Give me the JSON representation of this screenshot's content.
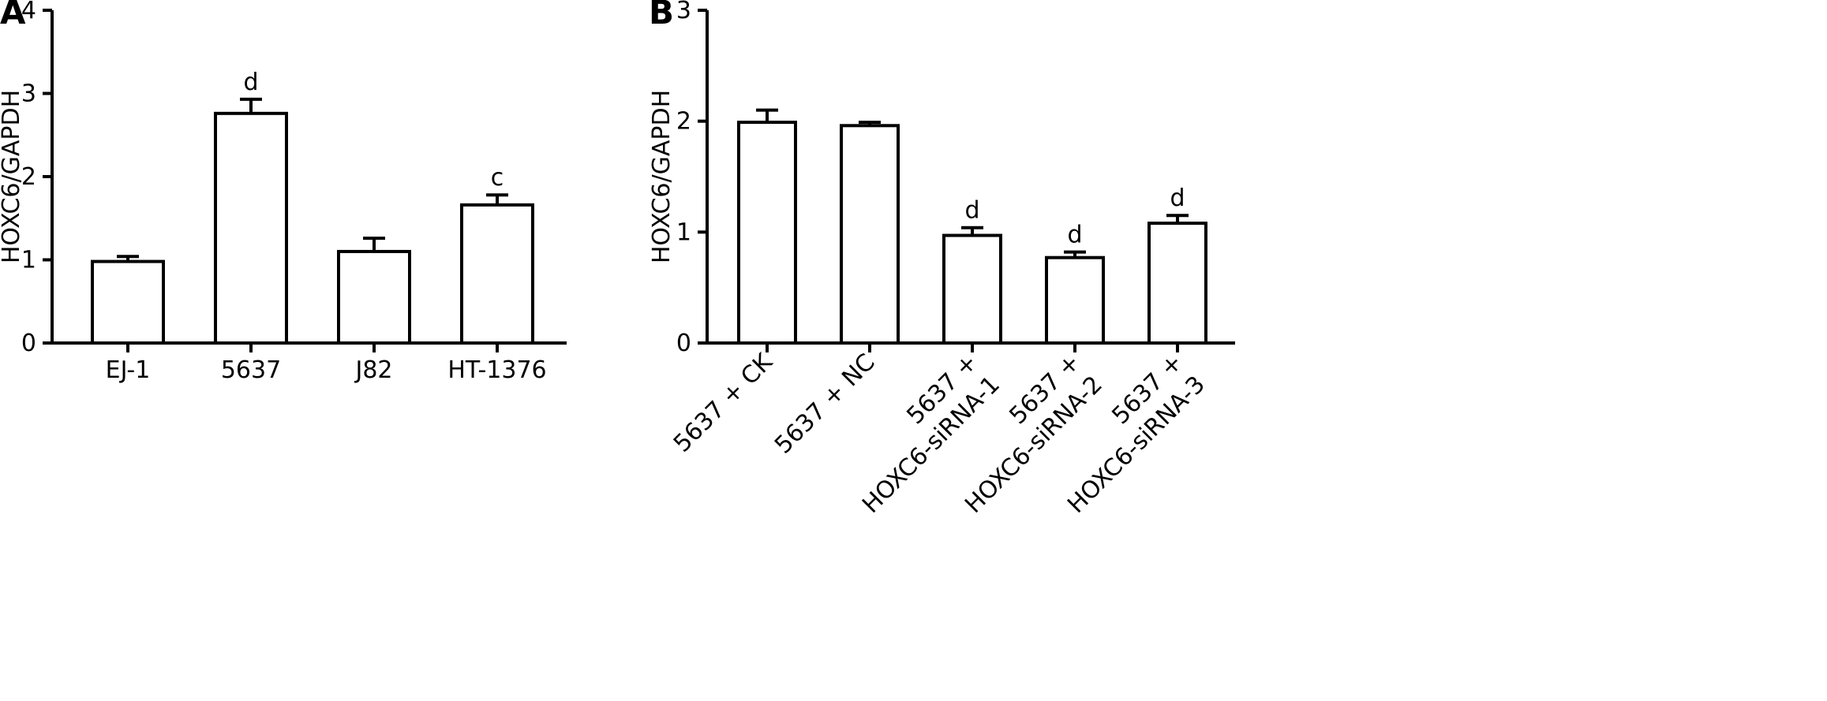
{
  "chart_data": [
    {
      "panel": "A",
      "type": "bar",
      "categories": [
        "EJ-1",
        "5637",
        "J82",
        "HT-1376"
      ],
      "values": [
        0.98,
        2.76,
        1.1,
        1.66
      ],
      "errors": [
        0.06,
        0.17,
        0.16,
        0.12
      ],
      "significance": [
        "",
        "d",
        "",
        "c"
      ],
      "ylabel": "HOXC6/GAPDH",
      "ylim": [
        0,
        4
      ],
      "yticks": [
        0,
        1,
        2,
        3,
        4
      ],
      "grid": false,
      "legend": "none",
      "bar_fill": "#ffffff",
      "bar_stroke": "#000000"
    },
    {
      "panel": "B",
      "type": "bar",
      "categories": [
        [
          "5637 + CK"
        ],
        [
          "5637 + NC"
        ],
        [
          "5637 +",
          "HOXC6-siRNA-1"
        ],
        [
          "5637 +",
          "HOXC6-siRNA-2"
        ],
        [
          "5637 +",
          "HOXC6-siRNA-3"
        ]
      ],
      "values": [
        1.99,
        1.96,
        0.97,
        0.77,
        1.08
      ],
      "errors": [
        0.11,
        0.03,
        0.07,
        0.05,
        0.07
      ],
      "significance": [
        "",
        "",
        "d",
        "d",
        "d"
      ],
      "ylabel": "HOXC6/GAPDH",
      "ylim": [
        0,
        3
      ],
      "yticks": [
        0,
        1,
        2,
        3
      ],
      "grid": false,
      "legend": "none",
      "bar_fill": "#ffffff",
      "bar_stroke": "#000000"
    }
  ]
}
